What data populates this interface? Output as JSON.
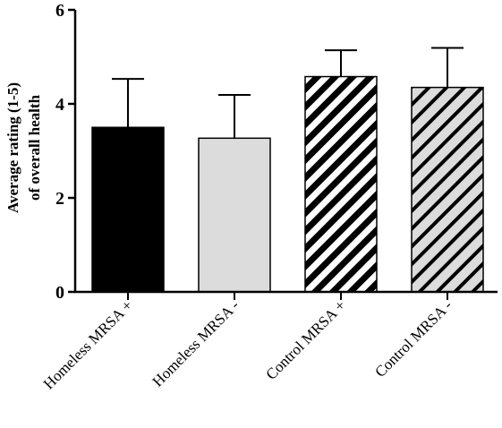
{
  "chart_data": {
    "type": "bar",
    "title": "",
    "ylabel_lines": [
      "Average rating (1-5)",
      "of overall health"
    ],
    "xlabel": "",
    "ylim": [
      0,
      6
    ],
    "yticks": [
      0,
      2,
      4,
      6
    ],
    "categories": [
      "Homeless MRSA +",
      "Homeless MRSA -",
      "Control MRSA +",
      "Control MRSA -"
    ],
    "values": [
      3.5,
      3.27,
      4.58,
      4.35
    ],
    "error_upper": [
      1.03,
      0.92,
      0.56,
      0.84
    ],
    "fills": [
      "solid-black",
      "solid-lightgray",
      "diagonal-black-white",
      "diagonal-black-lightgray"
    ],
    "grid": false,
    "legend": "none"
  },
  "colors": {
    "black": "#000000",
    "light_gray": "#dcdcdc",
    "white": "#ffffff"
  }
}
